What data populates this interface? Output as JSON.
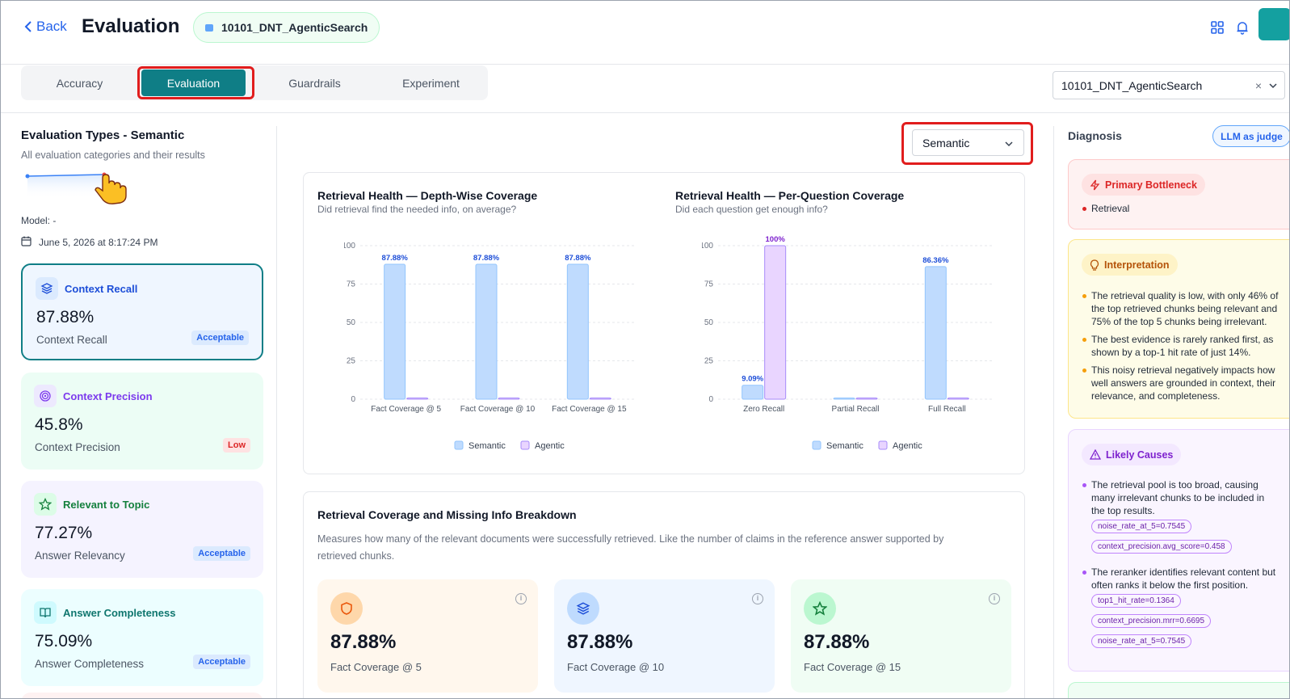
{
  "header": {
    "back_label": "Back",
    "title": "Evaluation",
    "project_pill": "10101_DNT_AgenticSearch"
  },
  "tabs": [
    {
      "label": "Accuracy"
    },
    {
      "label": "Evaluation"
    },
    {
      "label": "Guardrails"
    },
    {
      "label": "Experiment"
    }
  ],
  "active_tab": "Evaluation",
  "project_select": {
    "value": "10101_DNT_AgenticSearch"
  },
  "left": {
    "title": "Evaluation Types - Semantic",
    "subtitle": "All evaluation categories and their results",
    "model": "Model: -",
    "date": "June 5, 2026 at 8:17:24 PM",
    "metrics": [
      {
        "name": "Context Recall",
        "value": "87.88%",
        "label": "Context Recall",
        "badge": "Acceptable",
        "icon": "layers-icon",
        "color": "#1d4ed8"
      },
      {
        "name": "Context Precision",
        "value": "45.8%",
        "label": "Context Precision",
        "badge": "Low",
        "icon": "target-icon",
        "color": "#7c3aed"
      },
      {
        "name": "Relevant to Topic",
        "value": "77.27%",
        "label": "Answer Relevancy",
        "badge": "Acceptable",
        "icon": "star-icon",
        "color": "#15803d"
      },
      {
        "name": "Answer Completeness",
        "value": "75.09%",
        "label": "Answer Completeness",
        "badge": "Acceptable",
        "icon": "book-icon",
        "color": "#0f766e"
      }
    ]
  },
  "center": {
    "type_select": "Semantic",
    "charts_legend": [
      "Semantic",
      "Agentic"
    ]
  },
  "chart_data": [
    {
      "type": "bar",
      "title": "Retrieval Health — Depth-Wise Coverage",
      "subtitle": "Did retrieval find the needed info, on average?",
      "categories": [
        "Fact Coverage @ 5",
        "Fact Coverage @ 10",
        "Fact Coverage @ 15"
      ],
      "series": [
        {
          "name": "Semantic",
          "values": [
            87.88,
            87.88,
            87.88
          ],
          "labels": [
            "87.88%",
            "87.88%",
            "87.88%"
          ]
        },
        {
          "name": "Agentic",
          "values": [
            0,
            0,
            0
          ],
          "labels": [
            "",
            "",
            ""
          ]
        }
      ],
      "yticks": [
        "0",
        "25",
        "50",
        "75",
        "100"
      ],
      "ylim": [
        0,
        100
      ],
      "grid": true,
      "legend": "bottom"
    },
    {
      "type": "bar",
      "title": "Retrieval Health — Per-Question Coverage",
      "subtitle": "Did each question get enough info?",
      "categories": [
        "Zero Recall",
        "Partial Recall",
        "Full Recall"
      ],
      "series": [
        {
          "name": "Semantic",
          "values": [
            9.09,
            0,
            86.36
          ],
          "labels": [
            "9.09%",
            "",
            "86.36%"
          ]
        },
        {
          "name": "Agentic",
          "values": [
            100,
            0,
            0
          ],
          "labels": [
            "100%",
            "",
            ""
          ]
        }
      ],
      "yticks": [
        "0",
        "25",
        "50",
        "75",
        "100"
      ],
      "ylim": [
        0,
        100
      ],
      "grid": true,
      "legend": "bottom"
    }
  ],
  "breakdown": {
    "title": "Retrieval Coverage and Missing Info Breakdown",
    "description": "Measures how many of the relevant documents were successfully retrieved. Like the number of claims in the reference answer supported by retrieved chunks.",
    "cards": [
      {
        "value": "87.88%",
        "label": "Fact Coverage @ 5",
        "icon": "shield-icon",
        "bg": "#fff7ed"
      },
      {
        "value": "87.88%",
        "label": "Fact Coverage @ 10",
        "icon": "layers-icon",
        "bg": "#eff6ff"
      },
      {
        "value": "87.88%",
        "label": "Fact Coverage @ 15",
        "icon": "star-icon",
        "bg": "#f0fdf4"
      }
    ]
  },
  "diagnosis": {
    "title": "Diagnosis",
    "llm_button": "LLM as judge",
    "primary": {
      "label": "Primary Bottleneck",
      "item": "Retrieval"
    },
    "interpretation": {
      "label": "Interpretation",
      "items": [
        "The retrieval quality is low, with only 46% of the top retrieved chunks being relevant and 75% of the top 5 chunks being irrelevant.",
        "The best evidence is rarely ranked first, as shown by a top-1 hit rate of just 14%.",
        "This noisy retrieval negatively impacts how well answers are grounded in context, their relevance, and completeness."
      ]
    },
    "causes": {
      "label": "Likely Causes",
      "items": [
        {
          "text": "The retrieval pool is too broad, causing many irrelevant chunks to be included in the top results.",
          "tags": [
            "noise_rate_at_5=0.7545",
            "context_precision.avg_score=0.458"
          ]
        },
        {
          "text": "The reranker identifies relevant content but often ranks it below the first position.",
          "tags": [
            "top1_hit_rate=0.1364",
            "context_precision.mrr=0.6695",
            "noise_rate_at_5=0.7545"
          ]
        }
      ]
    }
  }
}
